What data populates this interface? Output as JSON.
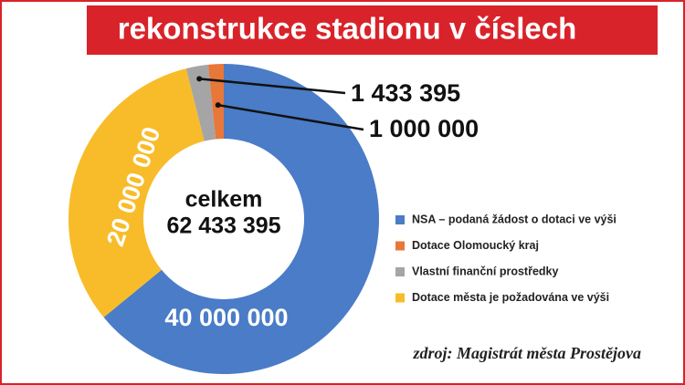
{
  "chart_data": {
    "type": "donut",
    "title": "rekonstrukce stadionu v číslech",
    "series": [
      {
        "name": "NSA – podaná žádost o dotaci ve výši",
        "color": "#4a7cc7",
        "values": [
          40000000
        ],
        "value_labels": [
          "40 000 000"
        ]
      },
      {
        "name": "Dotace Olomoucký kraj",
        "color": "#e8773a",
        "values": [
          1000000
        ],
        "value_labels": [
          "1 000 000"
        ]
      },
      {
        "name": "Vlastní finanční prostředky",
        "color": "#a5a5a5",
        "values": [
          1433395
        ],
        "value_labels": [
          "1 433 395"
        ]
      },
      {
        "name": "Dotace města je požadována ve výši",
        "color": "#f8bc2a",
        "values": [
          20000000
        ],
        "value_labels": [
          "20 000 000"
        ]
      }
    ],
    "center_text": "celkem",
    "total": {
      "value": 62433395,
      "label": "62 433 395"
    },
    "source": "zdroj: Magistrát města Prostějova"
  }
}
